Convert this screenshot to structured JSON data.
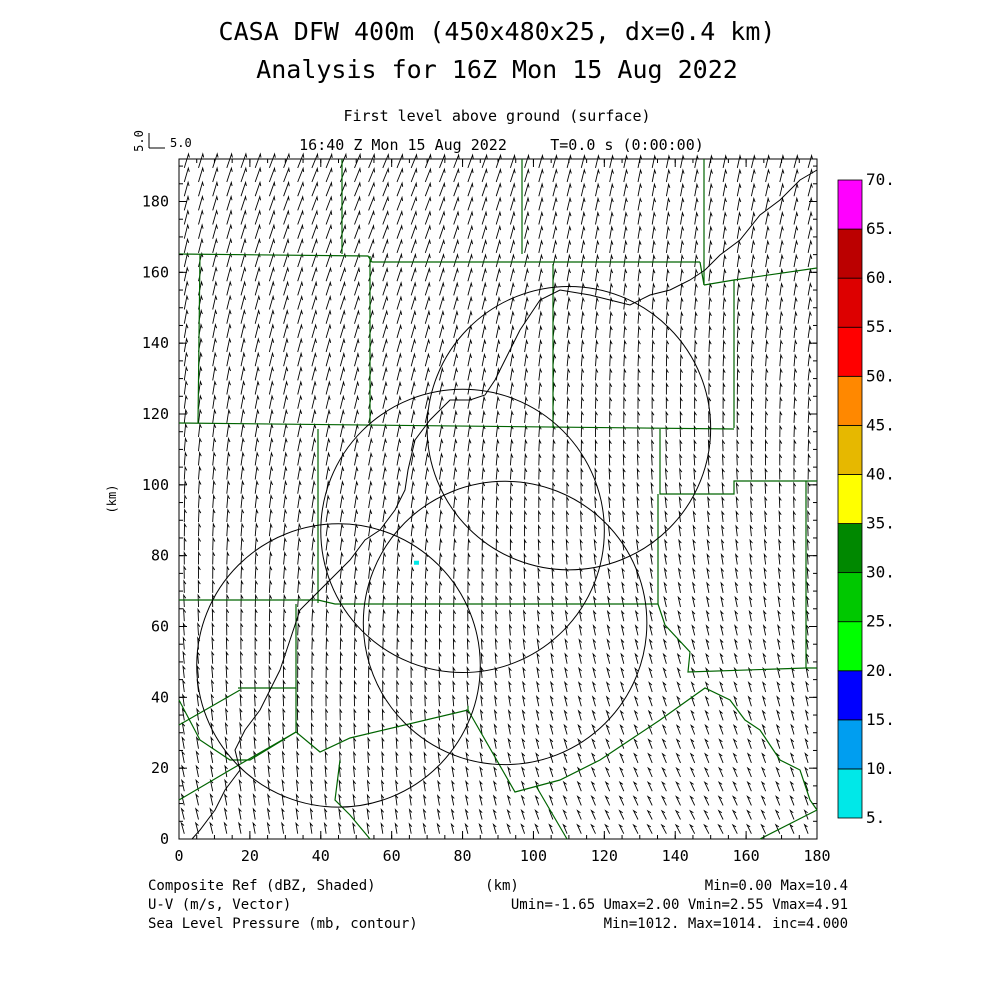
{
  "header": {
    "title_line1": "CASA DFW 400m (450x480x25, dx=0.4 km)",
    "title_line2": "Analysis for 16Z Mon 15 Aug 2022",
    "level": "First level above ground (surface)",
    "time": "16:40 Z Mon 15 Aug 2022",
    "t_value": "T=0.0 s (0:00:00)",
    "vector_scale_v": "5.0",
    "vector_scale_u": "5.0"
  },
  "footer": {
    "field1_label": "Composite Ref (dBZ, Shaded)",
    "field1_stats": "Min=0.00 Max=10.4",
    "field2_label": "U-V (m/s, Vector)",
    "field2_stats": "Umin=-1.65 Umax=2.00 Vmin=2.55 Vmax=4.91",
    "field3_label": "Sea Level Pressure (mb, contour)",
    "field3_stats": "Min=1012. Max=1014. inc=4.000"
  },
  "colors": {
    "boundary": "#006400",
    "contour": "#000000",
    "vector": "#000000"
  },
  "chart_data": {
    "type": "vector-field",
    "xlabel": "(km)",
    "ylabel": "(km)",
    "xlim": [
      0,
      180
    ],
    "ylim": [
      0,
      192
    ],
    "x_ticks": [
      "0",
      "20",
      "40",
      "60",
      "80",
      "100",
      "120",
      "140",
      "160",
      "180"
    ],
    "y_ticks": [
      "0",
      "20",
      "40",
      "60",
      "80",
      "100",
      "120",
      "140",
      "160",
      "180"
    ],
    "vector_scale": 5.0,
    "wind_u_range": [
      -1.65,
      2.0
    ],
    "wind_v_range": [
      2.55,
      4.91
    ],
    "radar_range_rings": [
      {
        "center": [
          110,
          116
        ],
        "radius_km": 40
      },
      {
        "center": [
          80,
          87
        ],
        "radius_km": 40
      },
      {
        "center": [
          45,
          49
        ],
        "radius_km": 40
      },
      {
        "center": [
          92,
          61
        ],
        "radius_km": 40
      }
    ],
    "reflectivity_echoes": [
      {
        "x": 67,
        "y": 78,
        "dbz": 7
      }
    ],
    "colorbar": {
      "label": "Composite Ref (dBZ)",
      "levels": [
        "5.",
        "10.",
        "15.",
        "20.",
        "25.",
        "30.",
        "35.",
        "40.",
        "45.",
        "50.",
        "55.",
        "60.",
        "65.",
        "70."
      ],
      "colors": [
        "#00e8e8",
        "#009ef0",
        "#0000ff",
        "#00ff00",
        "#00c800",
        "#008800",
        "#ffff00",
        "#e6b800",
        "#ff8800",
        "#ff0000",
        "#dd0000",
        "#bb0000",
        "#ff00ff"
      ]
    }
  }
}
